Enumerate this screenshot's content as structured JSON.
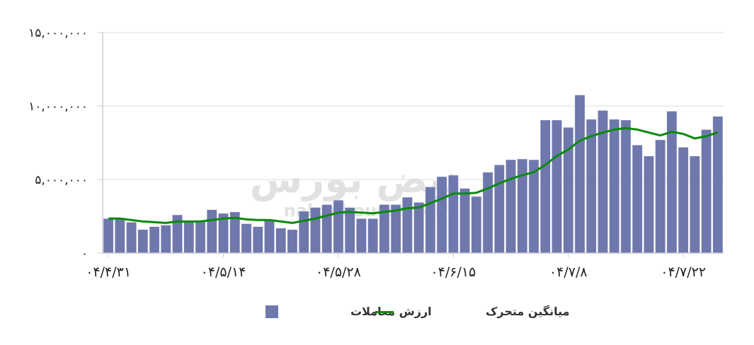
{
  "chart_data": {
    "type": "bar",
    "title": "",
    "xlabel": "",
    "ylabel": "",
    "ylim": [
      0,
      15000000
    ],
    "grid": true,
    "legend_placement": "bottom",
    "y_ticks": [
      {
        "value": 0,
        "label": "۰"
      },
      {
        "value": 5000000,
        "label": "۵,۰۰۰,۰۰۰"
      },
      {
        "value": 10000000,
        "label": "۱۰,۰۰۰,۰۰۰"
      },
      {
        "value": 15000000,
        "label": "۱۵,۰۰۰,۰۰۰"
      }
    ],
    "x_ticks": [
      {
        "index": 0,
        "label": "۰۴/۴/۳۱"
      },
      {
        "index": 10,
        "label": "۰۴/۵/۱۴"
      },
      {
        "index": 20,
        "label": "۰۴/۵/۲۸"
      },
      {
        "index": 30,
        "label": "۰۴/۶/۱۵"
      },
      {
        "index": 40,
        "label": "۰۴/۷/۸"
      },
      {
        "index": 50,
        "label": "۰۴/۷/۲۲"
      }
    ],
    "series": [
      {
        "name": "ارزش معاملات",
        "type": "bar",
        "color": "#6e78ad",
        "values": [
          2350000,
          2350000,
          2100000,
          1600000,
          1800000,
          1900000,
          2600000,
          2150000,
          2150000,
          2950000,
          2700000,
          2800000,
          2000000,
          1800000,
          2250000,
          1700000,
          1600000,
          2850000,
          3100000,
          3300000,
          3600000,
          3100000,
          2350000,
          2350000,
          3300000,
          3300000,
          3800000,
          3450000,
          4500000,
          5200000,
          5300000,
          4400000,
          3850000,
          5500000,
          6000000,
          6350000,
          6400000,
          6350000,
          9050000,
          9050000,
          8550000,
          10750000,
          9100000,
          9700000,
          9100000,
          9050000,
          7350000,
          6600000,
          7700000,
          9650000,
          7200000,
          6600000,
          8400000,
          9300000
        ]
      },
      {
        "name": "میانگین متحرک",
        "type": "line",
        "color": "#0a8a0a",
        "values": [
          2350000,
          2350000,
          2250000,
          2150000,
          2100000,
          2050000,
          2150000,
          2150000,
          2150000,
          2250000,
          2350000,
          2400000,
          2300000,
          2250000,
          2250000,
          2150000,
          2050000,
          2200000,
          2350000,
          2550000,
          2750000,
          2800000,
          2750000,
          2700000,
          2800000,
          2900000,
          3050000,
          3100000,
          3400000,
          3700000,
          4050000,
          4050000,
          4100000,
          4400000,
          4750000,
          5050000,
          5300000,
          5500000,
          6000000,
          6600000,
          7050000,
          7650000,
          7950000,
          8200000,
          8400000,
          8500000,
          8400000,
          8200000,
          8000000,
          8250000,
          8100000,
          7800000,
          7950000,
          8200000
        ]
      }
    ]
  },
  "watermark": {
    "text_fa": "نبض بورس",
    "text_en": "nabzebourse.com"
  },
  "colors": {
    "grid": "#dddddd",
    "axis": "#cccccc"
  }
}
